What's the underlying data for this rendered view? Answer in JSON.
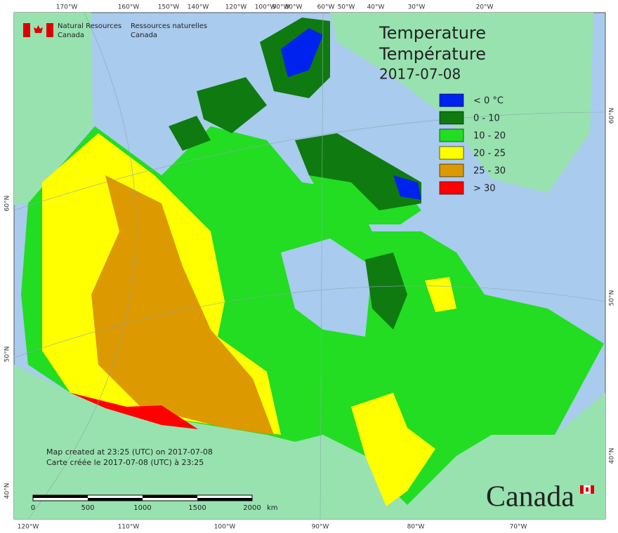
{
  "title": {
    "lines": [
      "Temperature",
      "Température",
      "2017-07-08"
    ]
  },
  "logo": {
    "en": [
      "Natural Resources",
      "Canada"
    ],
    "fr": [
      "Ressources naturelles",
      "Canada"
    ]
  },
  "legend": [
    {
      "label": "< 0 °C",
      "color": "#0022ee"
    },
    {
      "label": "0 - 10",
      "color": "#0f7a0f"
    },
    {
      "label": "10 - 20",
      "color": "#22dd22"
    },
    {
      "label": "20 - 25",
      "color": "#ffff00"
    },
    {
      "label": "25 - 30",
      "color": "#dd9900"
    },
    {
      "label": "> 30",
      "color": "#ff0000"
    }
  ],
  "graticule": {
    "top": [
      "170°W",
      "160°W",
      "150°W",
      "140°W",
      "120°W",
      "100°W",
      "90°W",
      "80°W",
      "60°W",
      "50°W",
      "40°W",
      "30°W",
      "20°W"
    ],
    "bottom": [
      "120°W",
      "110°W",
      "100°W",
      "90°W",
      "80°W",
      "70°W"
    ],
    "left": [
      "60°N",
      "50°N",
      "40°N"
    ],
    "right": [
      "60°N",
      "50°N",
      "40°N"
    ]
  },
  "credits": [
    "Map created at 23:25 (UTC) on 2017-07-08",
    "Carte créée le 2017-07-08 (UTC) à 23:25"
  ],
  "scale_bar": {
    "labels": [
      "0",
      "500",
      "1000",
      "1500",
      "2000"
    ],
    "unit": "km"
  },
  "wordmark": "Canada"
}
